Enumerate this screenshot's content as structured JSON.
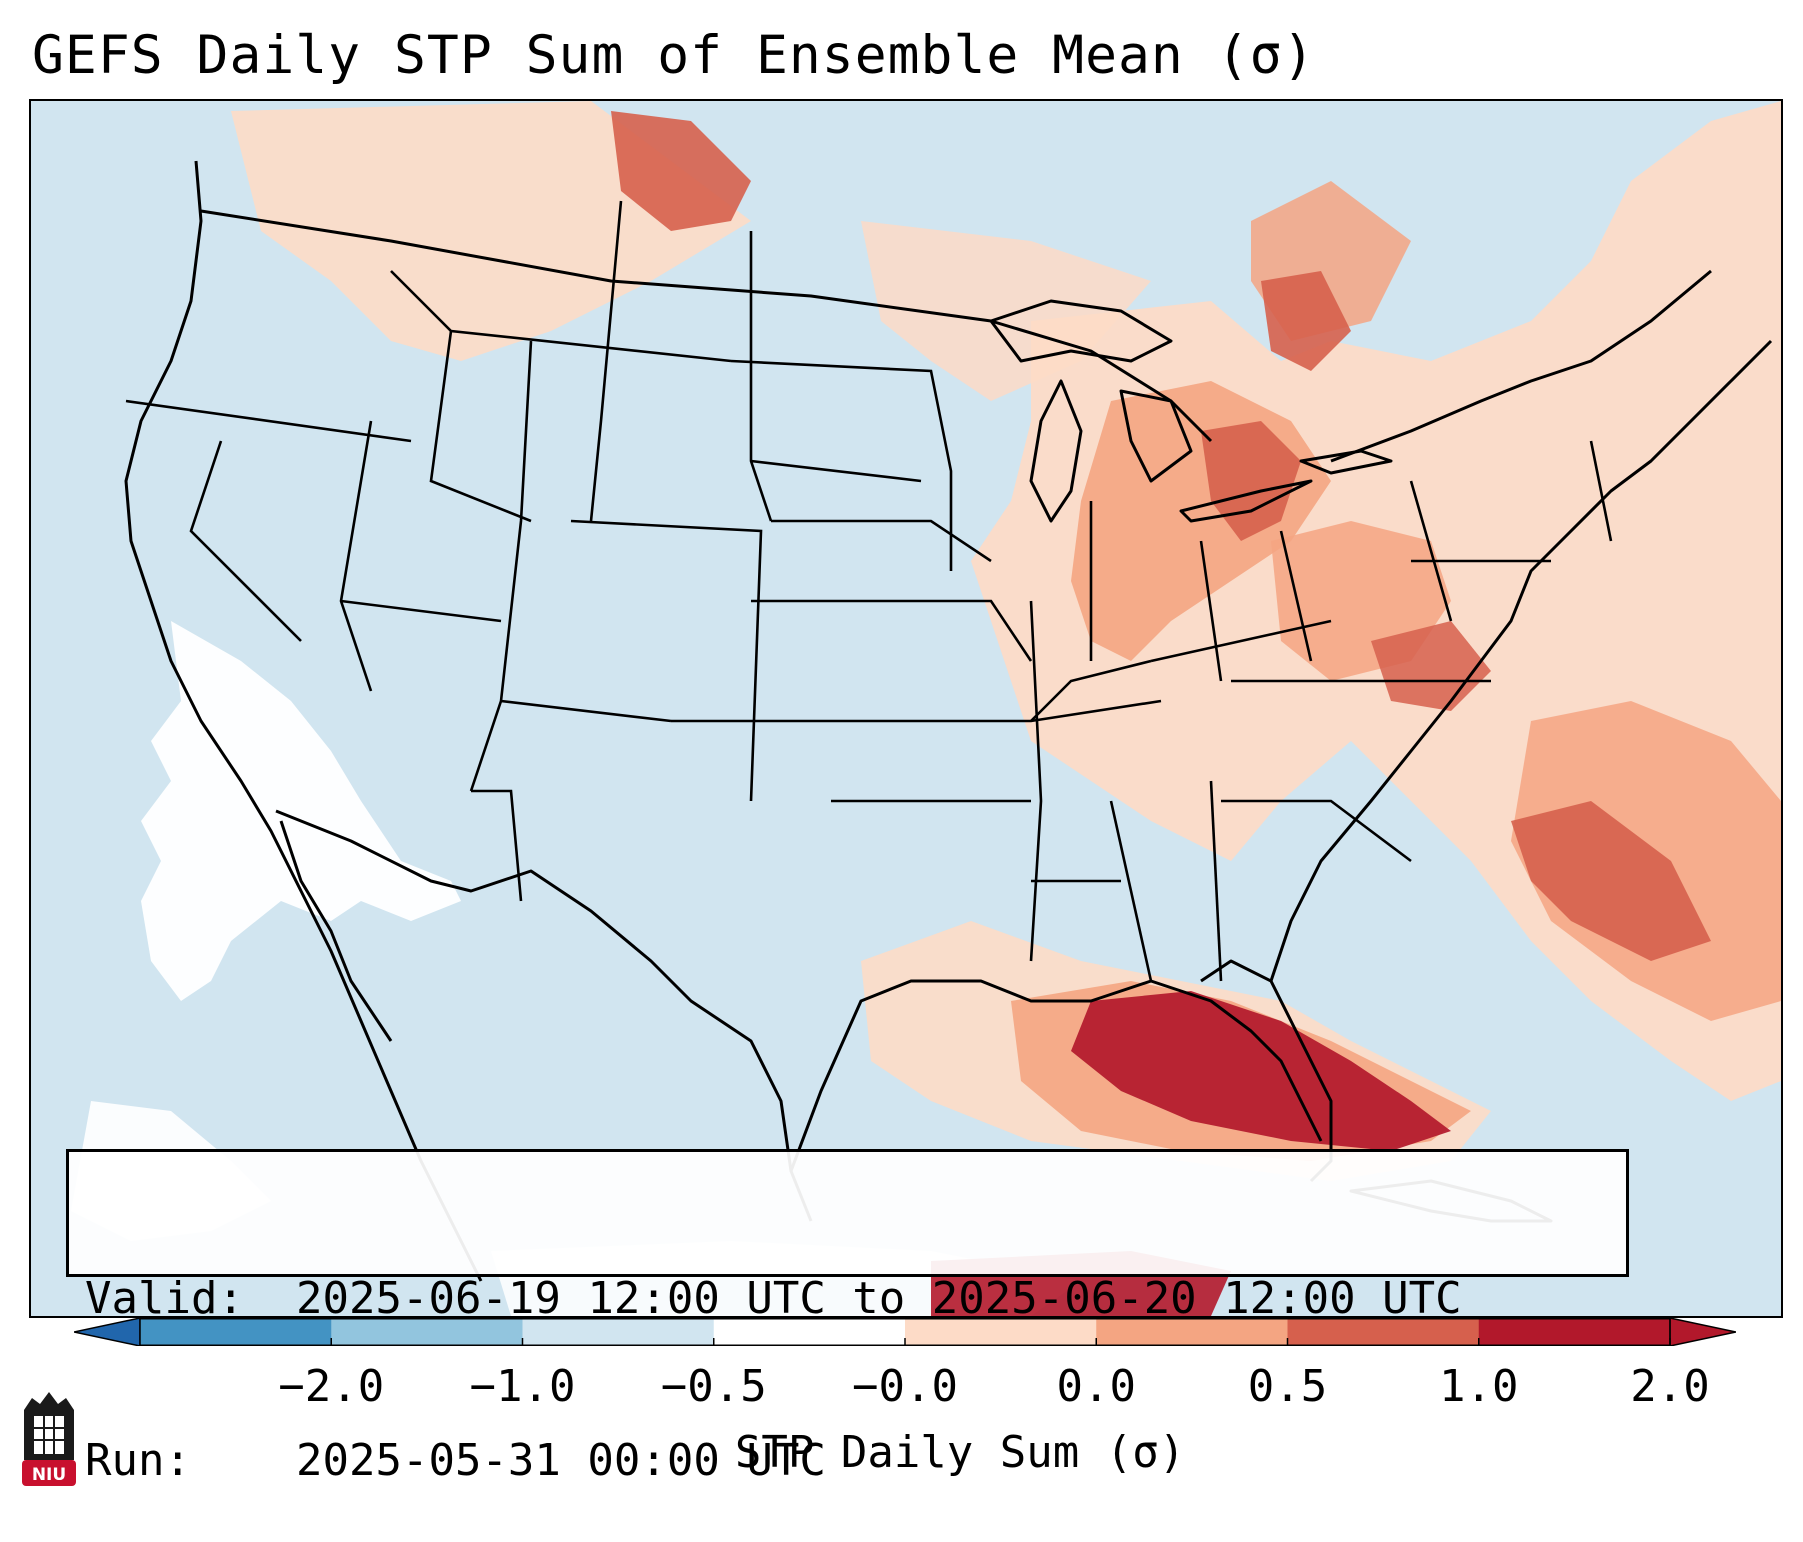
{
  "title": "GEFS Daily STP Sum of Ensemble Mean (σ)",
  "info": {
    "valid_label": "Valid:",
    "valid_value": "2025-06-19 12:00 UTC to 2025-06-20 12:00 UTC",
    "run_label": "Run:",
    "run_value": "2025-05-31 00:00 UTC"
  },
  "colorbar": {
    "label": "STP Daily Sum (σ)",
    "ticks": [
      "−2.0",
      "−1.0",
      "−0.5",
      "−0.0",
      "0.0",
      "0.5",
      "1.0",
      "2.0"
    ],
    "colors": [
      "#4393c3",
      "#92c5de",
      "#d1e5f0",
      "#ffffff",
      "#fddbc7",
      "#f4a582",
      "#d6604d",
      "#b2182b"
    ],
    "under_color": "#2166ac",
    "over_color": "#b2182b"
  },
  "logo": {
    "text": "NIU",
    "color": "#c8102e"
  },
  "map": {
    "background": "#d1e5f0",
    "region": "Continental United States, northern Mexico, southern Canada, Gulf of Mexico, western Atlantic"
  }
}
